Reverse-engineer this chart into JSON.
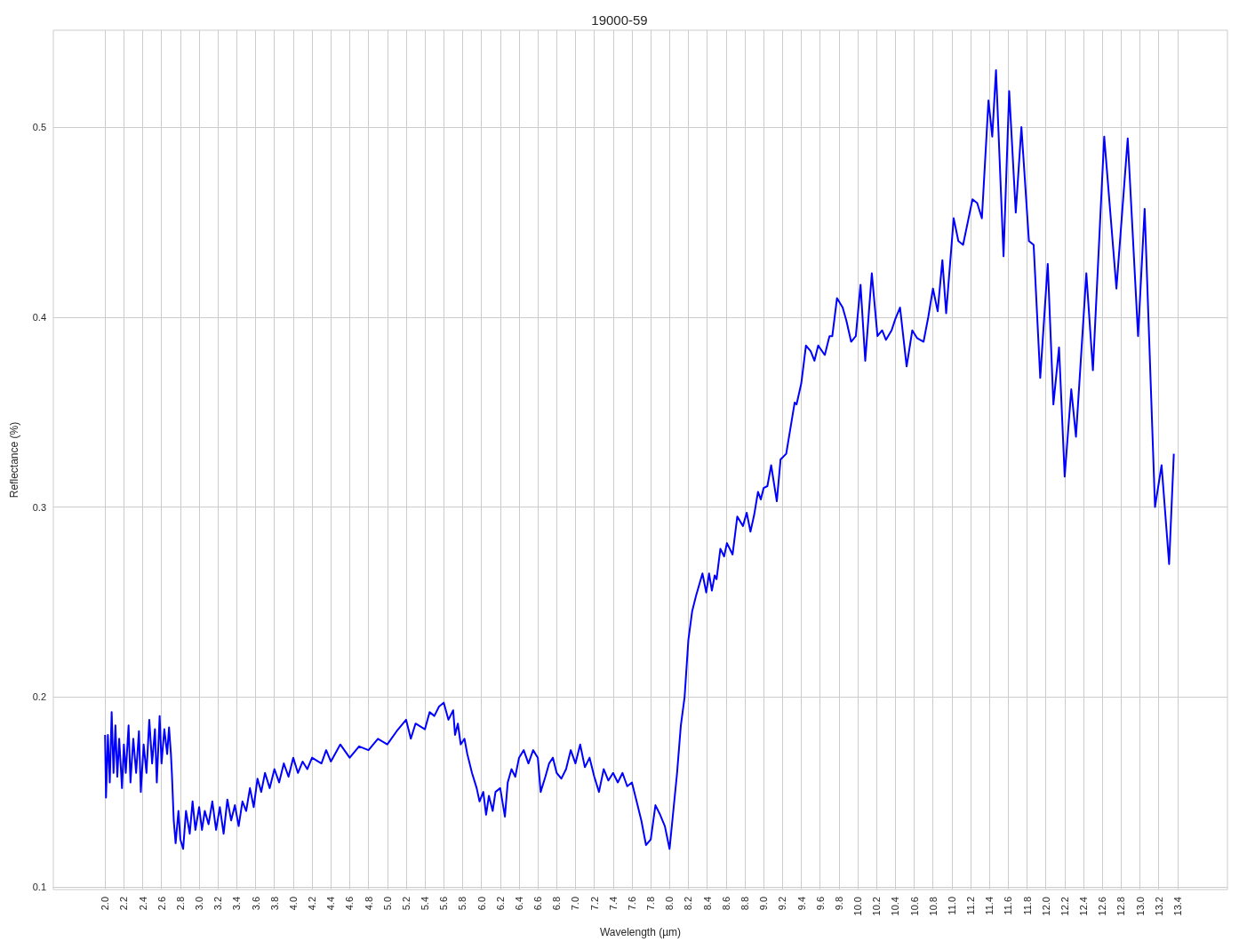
{
  "chart_data": {
    "type": "line",
    "title": "19000-59",
    "xlabel": "Wavelength (µm)",
    "ylabel": "Reflectance (%)",
    "xlim": [
      1.45,
      13.93
    ],
    "xticks": [
      {
        "value": 2.0,
        "label": "2.0"
      },
      {
        "value": 2.2,
        "label": "2.2"
      },
      {
        "value": 2.4,
        "label": "2.4"
      },
      {
        "value": 2.6,
        "label": "2.6"
      },
      {
        "value": 2.8,
        "label": "2.8"
      },
      {
        "value": 3.0,
        "label": "3.0"
      },
      {
        "value": 3.2,
        "label": "3.2"
      },
      {
        "value": 3.4,
        "label": "3.4"
      },
      {
        "value": 3.6,
        "label": "3.6"
      },
      {
        "value": 3.8,
        "label": "3.8"
      },
      {
        "value": 4.0,
        "label": "4.0"
      },
      {
        "value": 4.2,
        "label": "4.2"
      },
      {
        "value": 4.4,
        "label": "4.4"
      },
      {
        "value": 4.6,
        "label": "4.6"
      },
      {
        "value": 4.8,
        "label": "4.8"
      },
      {
        "value": 5.0,
        "label": "5.0"
      },
      {
        "value": 5.2,
        "label": "5.2"
      },
      {
        "value": 5.4,
        "label": "5.4"
      },
      {
        "value": 5.6,
        "label": "5.6"
      },
      {
        "value": 5.8,
        "label": "5.8"
      },
      {
        "value": 6.0,
        "label": "6.0"
      },
      {
        "value": 6.2,
        "label": "6.2"
      },
      {
        "value": 6.4,
        "label": "6.4"
      },
      {
        "value": 6.6,
        "label": "6.6"
      },
      {
        "value": 6.8,
        "label": "6.8"
      },
      {
        "value": 7.0,
        "label": "7.0"
      },
      {
        "value": 7.2,
        "label": "7.2"
      },
      {
        "value": 7.4,
        "label": "7.4"
      },
      {
        "value": 7.6,
        "label": "7.6"
      },
      {
        "value": 7.8,
        "label": "7.8"
      },
      {
        "value": 8.0,
        "label": "8.0"
      },
      {
        "value": 8.2,
        "label": "8.2"
      },
      {
        "value": 8.4,
        "label": "8.4"
      },
      {
        "value": 8.6,
        "label": "8.6"
      },
      {
        "value": 8.8,
        "label": "8.8"
      },
      {
        "value": 9.0,
        "label": "9.0"
      },
      {
        "value": 9.2,
        "label": "9.2"
      },
      {
        "value": 9.4,
        "label": "9.4"
      },
      {
        "value": 9.6,
        "label": "9.6"
      },
      {
        "value": 9.8,
        "label": "9.8"
      },
      {
        "value": 10.0,
        "label": "10.0"
      },
      {
        "value": 10.2,
        "label": "10.2"
      },
      {
        "value": 10.4,
        "label": "10.4"
      },
      {
        "value": 10.6,
        "label": "10.6"
      },
      {
        "value": 10.8,
        "label": "10.8"
      },
      {
        "value": 11.0,
        "label": "11.0"
      },
      {
        "value": 11.2,
        "label": "11.2"
      },
      {
        "value": 11.4,
        "label": "11.4"
      },
      {
        "value": 11.6,
        "label": "11.6"
      },
      {
        "value": 11.8,
        "label": "11.8"
      },
      {
        "value": 12.0,
        "label": "12.0"
      },
      {
        "value": 12.2,
        "label": "12.2"
      },
      {
        "value": 12.4,
        "label": "12.4"
      },
      {
        "value": 12.6,
        "label": "12.6"
      },
      {
        "value": 12.8,
        "label": "12.8"
      },
      {
        "value": 13.0,
        "label": "13.0"
      },
      {
        "value": 13.2,
        "label": "13.2"
      },
      {
        "value": 13.4,
        "label": "13.4"
      }
    ],
    "ylim": [
      0.0986,
      0.551
    ],
    "yticks": [
      0.1,
      0.2,
      0.3,
      0.4,
      0.5
    ],
    "grid": true,
    "marker": "none",
    "line_style": "solid",
    "series": [
      {
        "color": "#0000ff",
        "x": [
          2.0,
          2.01,
          2.03,
          2.05,
          2.07,
          2.09,
          2.11,
          2.13,
          2.15,
          2.18,
          2.2,
          2.22,
          2.25,
          2.27,
          2.3,
          2.33,
          2.36,
          2.38,
          2.41,
          2.44,
          2.47,
          2.5,
          2.53,
          2.55,
          2.58,
          2.6,
          2.63,
          2.66,
          2.68,
          2.7,
          2.71,
          2.73,
          2.75,
          2.78,
          2.8,
          2.83,
          2.86,
          2.9,
          2.93,
          2.96,
          3.0,
          3.03,
          3.06,
          3.1,
          3.14,
          3.18,
          3.22,
          3.26,
          3.3,
          3.34,
          3.38,
          3.42,
          3.46,
          3.5,
          3.54,
          3.58,
          3.62,
          3.66,
          3.7,
          3.75,
          3.8,
          3.85,
          3.9,
          3.95,
          4.0,
          4.05,
          4.1,
          4.15,
          4.2,
          4.3,
          4.35,
          4.4,
          4.5,
          4.6,
          4.7,
          4.8,
          4.9,
          5.0,
          5.1,
          5.2,
          5.25,
          5.3,
          5.4,
          5.45,
          5.5,
          5.55,
          5.6,
          5.65,
          5.7,
          5.72,
          5.75,
          5.78,
          5.82,
          5.85,
          5.9,
          5.95,
          5.98,
          6.02,
          6.05,
          6.08,
          6.12,
          6.15,
          6.2,
          6.25,
          6.28,
          6.32,
          6.36,
          6.4,
          6.45,
          6.5,
          6.55,
          6.6,
          6.63,
          6.68,
          6.72,
          6.76,
          6.8,
          6.85,
          6.9,
          6.95,
          7.0,
          7.05,
          7.1,
          7.15,
          7.2,
          7.25,
          7.3,
          7.35,
          7.4,
          7.45,
          7.5,
          7.55,
          7.6,
          7.65,
          7.7,
          7.75,
          7.8,
          7.85,
          7.9,
          7.95,
          8.0,
          8.04,
          8.08,
          8.12,
          8.16,
          8.2,
          8.24,
          8.28,
          8.35,
          8.39,
          8.42,
          8.45,
          8.48,
          8.5,
          8.54,
          8.58,
          8.61,
          8.67,
          8.72,
          8.78,
          8.82,
          8.86,
          8.9,
          8.94,
          8.97,
          9.0,
          9.04,
          9.08,
          9.14,
          9.18,
          9.24,
          9.33,
          9.35,
          9.4,
          9.45,
          9.5,
          9.54,
          9.58,
          9.65,
          9.7,
          9.73,
          9.78,
          9.84,
          9.88,
          9.93,
          9.98,
          10.03,
          10.08,
          10.15,
          10.21,
          10.26,
          10.3,
          10.36,
          10.4,
          10.45,
          10.52,
          10.58,
          10.63,
          10.7,
          10.75,
          10.8,
          10.85,
          10.9,
          10.94,
          11.02,
          11.07,
          11.12,
          11.22,
          11.27,
          11.32,
          11.39,
          11.43,
          11.47,
          11.55,
          11.61,
          11.68,
          11.74,
          11.82,
          11.87,
          11.94,
          12.02,
          12.08,
          12.14,
          12.2,
          12.27,
          12.32,
          12.43,
          12.5,
          12.62,
          12.75,
          12.87,
          12.98,
          13.05,
          13.16,
          13.23,
          13.31,
          13.36
        ],
        "values": [
          0.18,
          0.147,
          0.18,
          0.155,
          0.192,
          0.16,
          0.185,
          0.158,
          0.178,
          0.152,
          0.175,
          0.16,
          0.185,
          0.155,
          0.178,
          0.16,
          0.182,
          0.15,
          0.175,
          0.16,
          0.188,
          0.165,
          0.183,
          0.155,
          0.19,
          0.165,
          0.183,
          0.17,
          0.184,
          0.17,
          0.16,
          0.135,
          0.123,
          0.14,
          0.125,
          0.12,
          0.14,
          0.128,
          0.145,
          0.13,
          0.142,
          0.13,
          0.14,
          0.133,
          0.145,
          0.13,
          0.142,
          0.128,
          0.146,
          0.135,
          0.143,
          0.132,
          0.145,
          0.14,
          0.152,
          0.142,
          0.157,
          0.15,
          0.16,
          0.152,
          0.162,
          0.155,
          0.165,
          0.158,
          0.168,
          0.16,
          0.166,
          0.162,
          0.168,
          0.165,
          0.172,
          0.166,
          0.175,
          0.168,
          0.174,
          0.172,
          0.178,
          0.175,
          0.182,
          0.188,
          0.178,
          0.186,
          0.183,
          0.192,
          0.19,
          0.195,
          0.197,
          0.188,
          0.193,
          0.18,
          0.186,
          0.175,
          0.178,
          0.17,
          0.16,
          0.152,
          0.145,
          0.15,
          0.138,
          0.148,
          0.14,
          0.15,
          0.152,
          0.137,
          0.155,
          0.162,
          0.158,
          0.168,
          0.172,
          0.165,
          0.172,
          0.168,
          0.15,
          0.158,
          0.165,
          0.168,
          0.16,
          0.157,
          0.162,
          0.172,
          0.165,
          0.175,
          0.163,
          0.168,
          0.158,
          0.15,
          0.162,
          0.156,
          0.16,
          0.155,
          0.16,
          0.153,
          0.155,
          0.145,
          0.135,
          0.122,
          0.125,
          0.143,
          0.138,
          0.132,
          0.12,
          0.14,
          0.16,
          0.185,
          0.2,
          0.23,
          0.245,
          0.253,
          0.265,
          0.255,
          0.265,
          0.256,
          0.264,
          0.262,
          0.278,
          0.274,
          0.281,
          0.275,
          0.295,
          0.29,
          0.297,
          0.287,
          0.296,
          0.308,
          0.304,
          0.31,
          0.311,
          0.322,
          0.303,
          0.325,
          0.328,
          0.355,
          0.354,
          0.365,
          0.385,
          0.382,
          0.377,
          0.385,
          0.38,
          0.39,
          0.39,
          0.41,
          0.405,
          0.398,
          0.387,
          0.39,
          0.417,
          0.377,
          0.423,
          0.39,
          0.393,
          0.388,
          0.393,
          0.399,
          0.405,
          0.374,
          0.393,
          0.389,
          0.387,
          0.4,
          0.415,
          0.403,
          0.43,
          0.402,
          0.452,
          0.44,
          0.438,
          0.462,
          0.46,
          0.452,
          0.514,
          0.495,
          0.53,
          0.432,
          0.519,
          0.455,
          0.5,
          0.44,
          0.438,
          0.368,
          0.428,
          0.354,
          0.384,
          0.316,
          0.362,
          0.337,
          0.423,
          0.372,
          0.495,
          0.415,
          0.494,
          0.39,
          0.457,
          0.3,
          0.322,
          0.27,
          0.328
        ]
      }
    ]
  }
}
